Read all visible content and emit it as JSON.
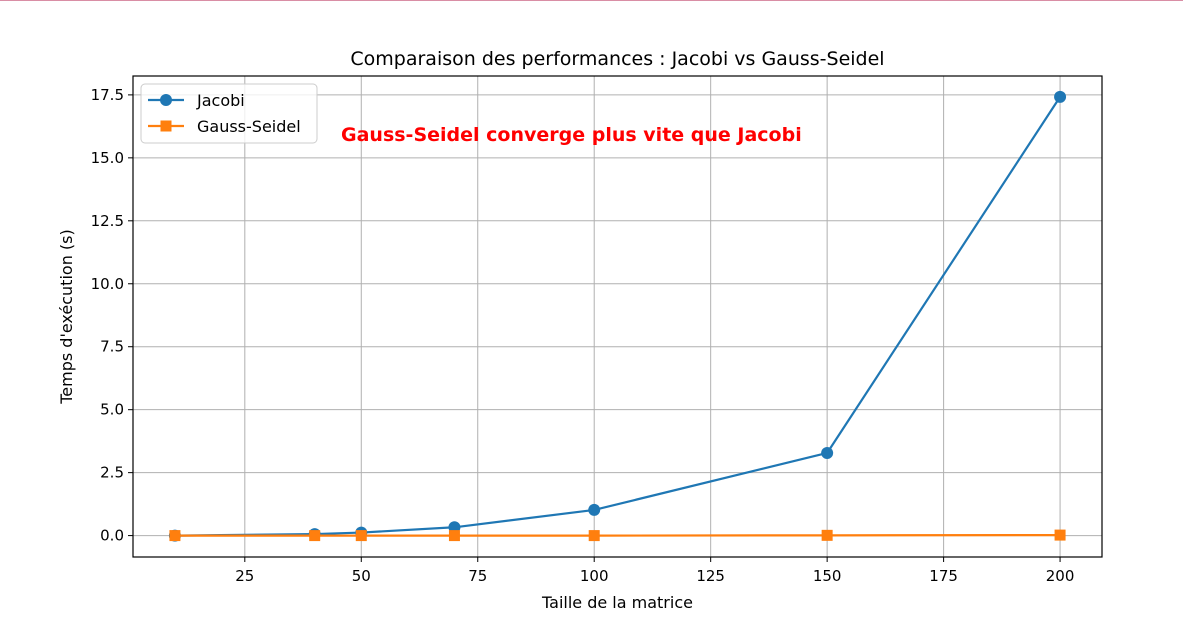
{
  "chart_data": {
    "type": "line",
    "title": "Comparaison des performances : Jacobi vs Gauss-Seidel",
    "xlabel": "Taille de la matrice",
    "ylabel": "Temps d'exécution (s)",
    "xlim": [
      1,
      209
    ],
    "ylim": [
      -0.85,
      18.25
    ],
    "x_ticks": [
      25,
      50,
      75,
      100,
      125,
      150,
      175,
      200
    ],
    "x_tick_labels": [
      "25",
      "50",
      "75",
      "100",
      "125",
      "150",
      "175",
      "200"
    ],
    "y_ticks": [
      0,
      2.5,
      5,
      7.5,
      10,
      12.5,
      15,
      17.5
    ],
    "y_tick_labels": [
      "0.0",
      "2.5",
      "5.0",
      "7.5",
      "10.0",
      "12.5",
      "15.0",
      "17.5"
    ],
    "grid": true,
    "legend_position": "top-left",
    "annotation": {
      "text": "Gauss-Seidel converge plus vite que Jacobi",
      "color": "#ff0000"
    },
    "series": [
      {
        "name": "Jacobi",
        "color": "#1f77b4",
        "marker": "circle",
        "x": [
          10,
          40,
          50,
          70,
          100,
          150,
          200
        ],
        "y": [
          0.0,
          0.06,
          0.12,
          0.33,
          1.02,
          3.28,
          17.42
        ]
      },
      {
        "name": "Gauss-Seidel",
        "color": "#ff7f0e",
        "marker": "square",
        "x": [
          10,
          40,
          50,
          70,
          100,
          150,
          200
        ],
        "y": [
          0.0,
          0.0,
          0.0,
          0.0,
          0.0,
          0.01,
          0.02
        ]
      }
    ]
  }
}
